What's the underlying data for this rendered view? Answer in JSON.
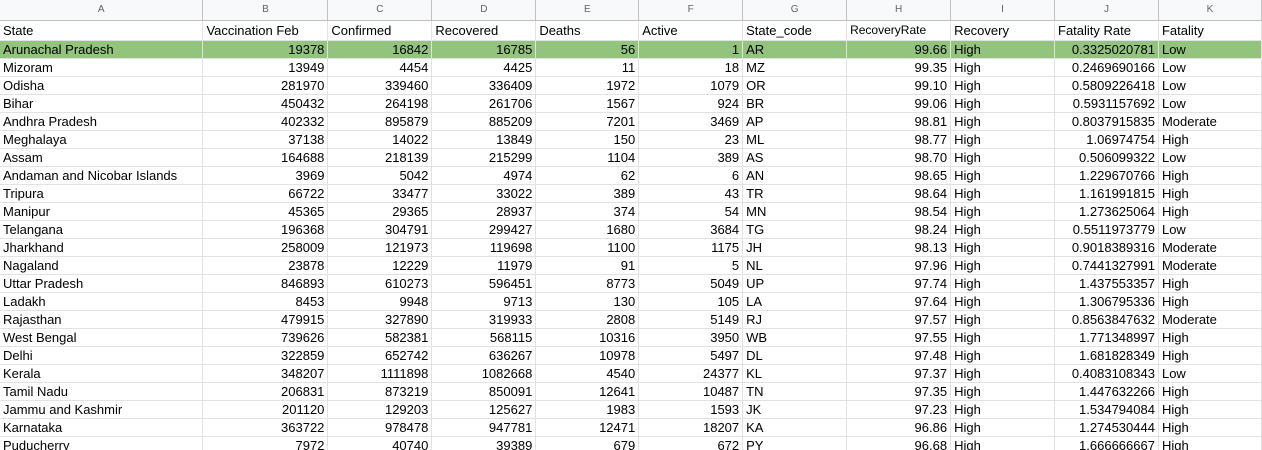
{
  "columns": [
    "A",
    "B",
    "C",
    "D",
    "E",
    "F",
    "G",
    "H",
    "I",
    "J",
    "K"
  ],
  "headers": [
    "State",
    "Vaccination Feb",
    "Confirmed",
    "Recovered",
    "Deaths",
    "Active",
    "State_code",
    "RecoveryRate",
    "Recovery",
    "Fatality Rate",
    "Fatality"
  ],
  "rows": [
    [
      "Arunachal Pradesh",
      "19378",
      "16842",
      "16785",
      "56",
      "1",
      "AR",
      "99.66",
      "High",
      "0.3325020781",
      "Low"
    ],
    [
      "Mizoram",
      "13949",
      "4454",
      "4425",
      "11",
      "18",
      "MZ",
      "99.35",
      "High",
      "0.2469690166",
      "Low"
    ],
    [
      "Odisha",
      "281970",
      "339460",
      "336409",
      "1972",
      "1079",
      "OR",
      "99.10",
      "High",
      "0.5809226418",
      "Low"
    ],
    [
      "Bihar",
      "450432",
      "264198",
      "261706",
      "1567",
      "924",
      "BR",
      "99.06",
      "High",
      "0.5931157692",
      "Low"
    ],
    [
      "Andhra Pradesh",
      "402332",
      "895879",
      "885209",
      "7201",
      "3469",
      "AP",
      "98.81",
      "High",
      "0.8037915835",
      "Moderate"
    ],
    [
      "Meghalaya",
      "37138",
      "14022",
      "13849",
      "150",
      "23",
      "ML",
      "98.77",
      "High",
      "1.06974754",
      "High"
    ],
    [
      "Assam",
      "164688",
      "218139",
      "215299",
      "1104",
      "389",
      "AS",
      "98.70",
      "High",
      "0.506099322",
      "Low"
    ],
    [
      "Andaman and Nicobar Islands",
      "3969",
      "5042",
      "4974",
      "62",
      "6",
      "AN",
      "98.65",
      "High",
      "1.229670766",
      "High"
    ],
    [
      "Tripura",
      "66722",
      "33477",
      "33022",
      "389",
      "43",
      "TR",
      "98.64",
      "High",
      "1.161991815",
      "High"
    ],
    [
      "Manipur",
      "45365",
      "29365",
      "28937",
      "374",
      "54",
      "MN",
      "98.54",
      "High",
      "1.273625064",
      "High"
    ],
    [
      "Telangana",
      "196368",
      "304791",
      "299427",
      "1680",
      "3684",
      "TG",
      "98.24",
      "High",
      "0.5511973779",
      "Low"
    ],
    [
      "Jharkhand",
      "258009",
      "121973",
      "119698",
      "1100",
      "1175",
      "JH",
      "98.13",
      "High",
      "0.9018389316",
      "Moderate"
    ],
    [
      "Nagaland",
      "23878",
      "12229",
      "11979",
      "91",
      "5",
      "NL",
      "97.96",
      "High",
      "0.7441327991",
      "Moderate"
    ],
    [
      "Uttar Pradesh",
      "846893",
      "610273",
      "596451",
      "8773",
      "5049",
      "UP",
      "97.74",
      "High",
      "1.437553357",
      "High"
    ],
    [
      "Ladakh",
      "8453",
      "9948",
      "9713",
      "130",
      "105",
      "LA",
      "97.64",
      "High",
      "1.306795336",
      "High"
    ],
    [
      "Rajasthan",
      "479915",
      "327890",
      "319933",
      "2808",
      "5149",
      "RJ",
      "97.57",
      "High",
      "0.8563847632",
      "Moderate"
    ],
    [
      "West Bengal",
      "739626",
      "582381",
      "568115",
      "10316",
      "3950",
      "WB",
      "97.55",
      "High",
      "1.771348997",
      "High"
    ],
    [
      "Delhi",
      "322859",
      "652742",
      "636267",
      "10978",
      "5497",
      "DL",
      "97.48",
      "High",
      "1.681828349",
      "High"
    ],
    [
      "Kerala",
      "348207",
      "1111898",
      "1082668",
      "4540",
      "24377",
      "KL",
      "97.37",
      "High",
      "0.4083108343",
      "Low"
    ],
    [
      "Tamil Nadu",
      "206831",
      "873219",
      "850091",
      "12641",
      "10487",
      "TN",
      "97.35",
      "High",
      "1.447632266",
      "High"
    ],
    [
      "Jammu and Kashmir",
      "201120",
      "129203",
      "125627",
      "1983",
      "1593",
      "JK",
      "97.23",
      "High",
      "1.534794084",
      "High"
    ],
    [
      "Karnataka",
      "363722",
      "978478",
      "947781",
      "12471",
      "18207",
      "KA",
      "96.86",
      "High",
      "1.274530444",
      "High"
    ],
    [
      "Puducherry",
      "7972",
      "40740",
      "39389",
      "679",
      "672",
      "PY",
      "96.68",
      "High",
      "1.666666667",
      "High"
    ]
  ]
}
